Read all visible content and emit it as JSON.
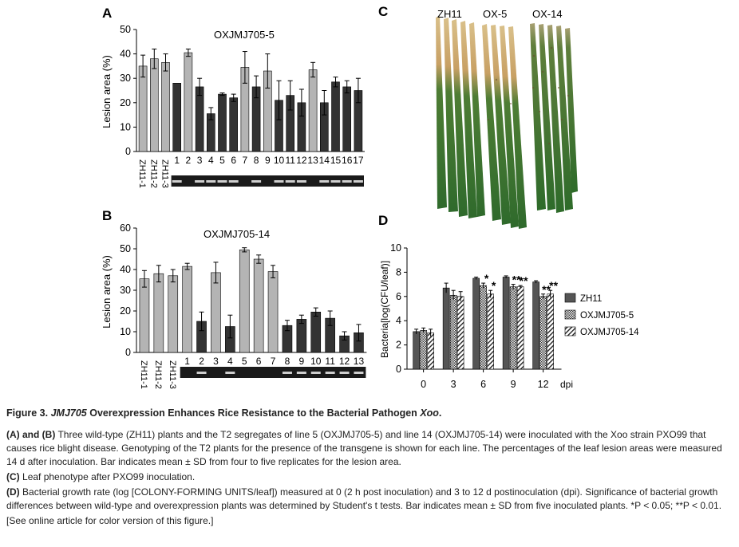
{
  "panelA": {
    "letter": "A",
    "title": "OXJMJ705-5",
    "ylabel": "Lesion area (%)"
  },
  "panelB": {
    "letter": "B",
    "title": "OXJMJ705-14",
    "ylabel": "Lesion area (%)"
  },
  "panelC": {
    "letter": "C",
    "labels": [
      "ZH11",
      "OX-5",
      "OX-14"
    ]
  },
  "panelD": {
    "letter": "D",
    "ylabel": "Bacteria[log(CFU/leaf)]",
    "xunit": "dpi",
    "legend": [
      "ZH11",
      "OXJMJ705-5",
      "OXJMJ705-14"
    ]
  },
  "chart_data": [
    {
      "id": "A",
      "type": "bar",
      "title": "OXJMJ705-5",
      "ylabel": "Lesion area (%)",
      "ylim": [
        0,
        50
      ],
      "yticks": [
        0,
        10,
        20,
        30,
        40,
        50
      ],
      "categories": [
        "ZH11-1",
        "ZH11-2",
        "ZH11-3",
        "1",
        "2",
        "3",
        "4",
        "5",
        "6",
        "7",
        "8",
        "9",
        "10",
        "11",
        "12",
        "13",
        "14",
        "15",
        "16",
        "17"
      ],
      "values": [
        35,
        38,
        36.5,
        28,
        40.5,
        26.5,
        15.5,
        23.5,
        22,
        34.5,
        26.5,
        33,
        21,
        23,
        20,
        33.5,
        20,
        28.5,
        26.5,
        25
      ],
      "errors": [
        4.5,
        4,
        3.5,
        0,
        1.5,
        3.5,
        2.5,
        0.5,
        1.5,
        6.5,
        4.5,
        7,
        8,
        6,
        5.5,
        3,
        5,
        2,
        2.5,
        5
      ],
      "colors": [
        "#b4b4b4",
        "#b4b4b4",
        "#b4b4b4",
        "#333333",
        "#b4b4b4",
        "#333333",
        "#333333",
        "#333333",
        "#333333",
        "#b4b4b4",
        "#333333",
        "#b4b4b4",
        "#333333",
        "#333333",
        "#333333",
        "#b4b4b4",
        "#333333",
        "#333333",
        "#333333",
        "#333333"
      ],
      "gel_bands": [
        true,
        true,
        true,
        true,
        false,
        true,
        true,
        true,
        true,
        false,
        true,
        false,
        true,
        true,
        true,
        false,
        true,
        true,
        true,
        true
      ]
    },
    {
      "id": "B",
      "type": "bar",
      "title": "OXJMJ705-14",
      "ylabel": "Lesion area (%)",
      "ylim": [
        0,
        60
      ],
      "yticks": [
        0,
        10,
        20,
        30,
        40,
        50,
        60
      ],
      "categories": [
        "ZH11-1",
        "ZH11-2",
        "ZH11-3",
        "1",
        "2",
        "3",
        "4",
        "5",
        "6",
        "7",
        "8",
        "9",
        "10",
        "11",
        "12",
        "13"
      ],
      "values": [
        35.5,
        38,
        37,
        41.5,
        15,
        38.5,
        12.5,
        49.5,
        45,
        39,
        13,
        16,
        19.5,
        16.5,
        8,
        9.5
      ],
      "errors": [
        4,
        4,
        3,
        1.5,
        4.5,
        5,
        5.5,
        1,
        2,
        3,
        2.5,
        2,
        2,
        3.5,
        2,
        4
      ],
      "colors": [
        "#b4b4b4",
        "#b4b4b4",
        "#b4b4b4",
        "#b4b4b4",
        "#333333",
        "#b4b4b4",
        "#333333",
        "#b4b4b4",
        "#b4b4b4",
        "#b4b4b4",
        "#333333",
        "#333333",
        "#333333",
        "#333333",
        "#333333",
        "#333333"
      ],
      "gel_bands": [
        false,
        false,
        false,
        false,
        true,
        false,
        true,
        false,
        false,
        false,
        true,
        true,
        true,
        true,
        true,
        true
      ]
    },
    {
      "id": "D",
      "type": "bar",
      "ylabel": "Bacteria[log(CFU/leaf)]",
      "xlabel": "dpi",
      "ylim": [
        0,
        10
      ],
      "yticks": [
        0,
        2,
        4,
        6,
        8,
        10
      ],
      "categories": [
        "0",
        "3",
        "6",
        "9",
        "12"
      ],
      "series": [
        {
          "name": "ZH11",
          "values": [
            3.1,
            6.7,
            7.5,
            7.6,
            7.2
          ],
          "errors": [
            0.2,
            0.4,
            0.1,
            0.1,
            0.1
          ],
          "fill": "#555555"
        },
        {
          "name": "OXJMJ705-5",
          "values": [
            3.2,
            6.1,
            6.9,
            6.8,
            6.0
          ],
          "errors": [
            0.2,
            0.4,
            0.2,
            0.2,
            0.2
          ],
          "fill": "checker"
        },
        {
          "name": "OXJMJ705-14",
          "values": [
            3.0,
            6.0,
            6.2,
            6.8,
            6.2
          ],
          "errors": [
            0.3,
            0.4,
            0.3,
            0.1,
            0.3
          ],
          "fill": "hatch"
        }
      ],
      "significance": [
        [
          "",
          "",
          ""
        ],
        [
          "",
          "",
          ""
        ],
        [
          "",
          "*",
          "*"
        ],
        [
          "",
          "**",
          "**"
        ],
        [
          "",
          "**",
          "**"
        ]
      ]
    }
  ],
  "caption": {
    "title_prefix": "Figure 3.",
    "title_gene": "JMJ705",
    "title_mid": "Overexpression Enhances Rice Resistance to the Bacterial Pathogen",
    "title_pathogen": "Xoo",
    "p1_bold": "(A) and (B)",
    "p1_text": "Three wild-type (ZH11) plants and the T2 segregates of line 5 (OXJMJ705-5) and line 14 (OXJMJ705-14) were inoculated with the Xoo strain PXO99 that causes rice blight disease. Genotyping of the T2 plants for the presence of the transgene is shown for each line. The percentages of the leaf lesion areas were measured 14 d after inoculation. Bar indicates mean ± SD from four to five replicates for the lesion area.",
    "p2_bold": "(C)",
    "p2_text": "Leaf phenotype after PXO99 inoculation.",
    "p3_bold": "(D)",
    "p3_text": "Bacterial growth rate (log [COLONY-FORMING UNITS/leaf]) measured at 0 (2 h post inoculation) and 3 to 12 d postinoculation (dpi). Significance of bacterial growth differences between wild-type and overexpression plants was determined by Student's t tests. Bar indicates mean ± SD from five inoculated plants. *P < 0.05; **P < 0.01.",
    "p4": "[See online article for color version of this figure.]"
  }
}
